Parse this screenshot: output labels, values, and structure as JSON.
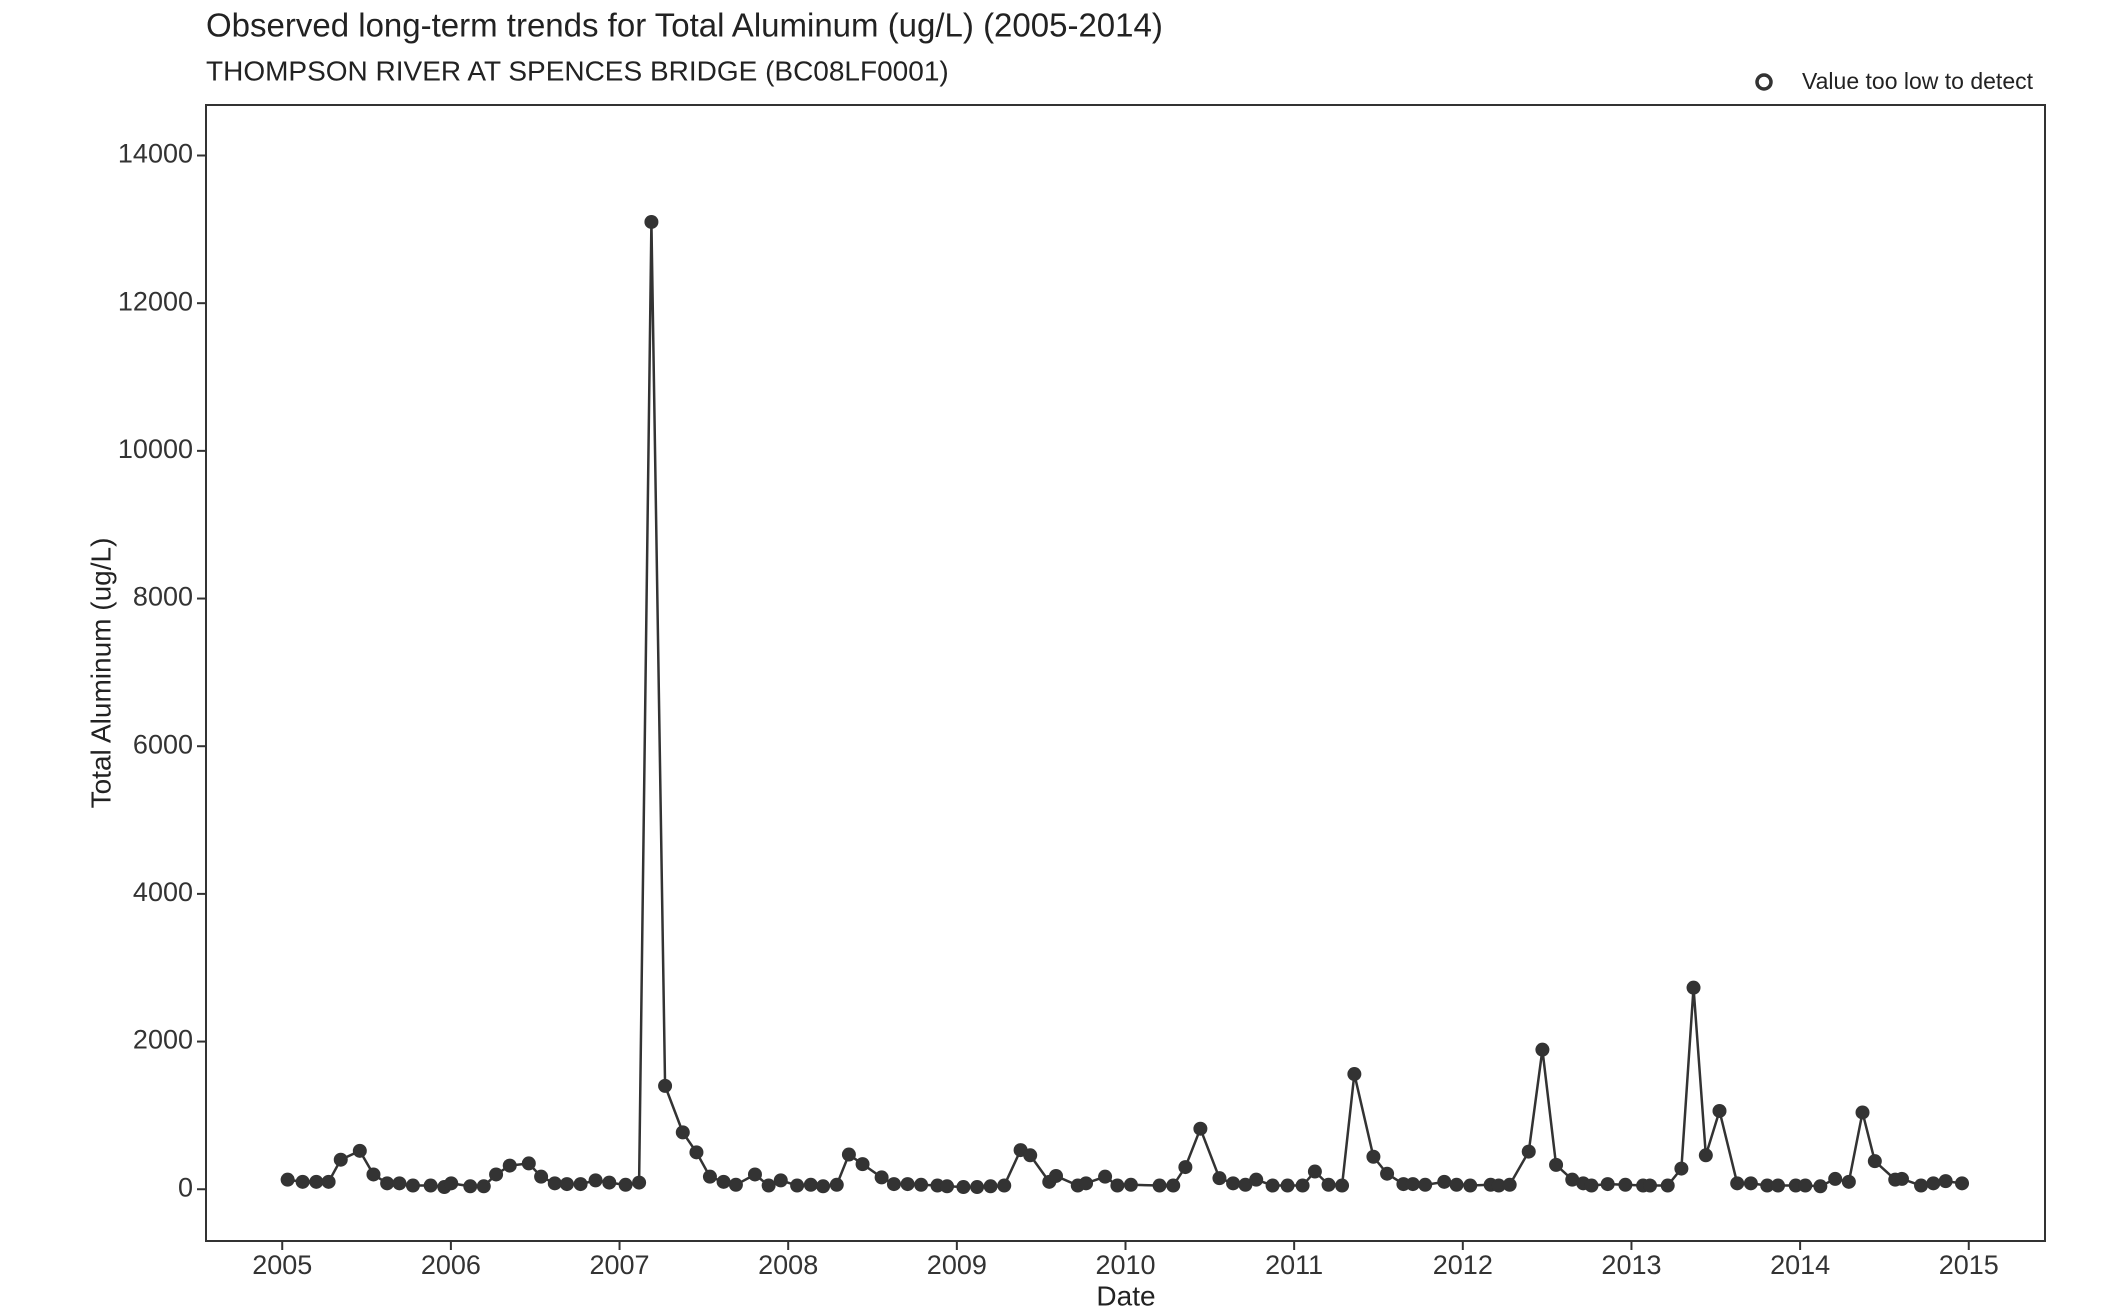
{
  "chart_data": {
    "type": "line",
    "title": "Observed long-term trends for Total Aluminum (ug/L) (2005-2014)",
    "subtitle": "THOMPSON RIVER AT SPENCES BRIDGE (BC08LF0001)",
    "x_label": "Date",
    "y_label": "Total Aluminum (ug/L)",
    "legend": [
      {
        "label": "Value too low to detect",
        "marker": "open-circle"
      }
    ],
    "legend_position": "top-right",
    "grid": false,
    "color": "#333333",
    "x": [
      2005.032,
      2005.121,
      2005.202,
      2005.275,
      2005.347,
      2005.46,
      2005.541,
      2005.622,
      2005.695,
      2005.775,
      2005.88,
      2005.961,
      2006.002,
      2006.115,
      2006.195,
      2006.268,
      2006.349,
      2006.462,
      2006.535,
      2006.616,
      2006.688,
      2006.769,
      2006.858,
      2006.939,
      2007.036,
      2007.116,
      2007.189,
      2007.27,
      2007.375,
      2007.456,
      2007.536,
      2007.617,
      2007.69,
      2007.803,
      2007.884,
      2007.956,
      2008.053,
      2008.134,
      2008.207,
      2008.288,
      2008.36,
      2008.441,
      2008.554,
      2008.627,
      2008.708,
      2008.788,
      2008.885,
      2008.942,
      2009.039,
      2009.12,
      2009.2,
      2009.281,
      2009.378,
      2009.435,
      2009.548,
      2009.588,
      2009.717,
      2009.766,
      2009.879,
      2009.952,
      2010.032,
      2010.202,
      2010.283,
      2010.355,
      2010.444,
      2010.557,
      2010.638,
      2010.711,
      2010.775,
      2010.872,
      2010.961,
      2011.05,
      2011.123,
      2011.204,
      2011.284,
      2011.357,
      2011.47,
      2011.551,
      2011.648,
      2011.704,
      2011.777,
      2011.89,
      2011.963,
      2012.044,
      2012.165,
      2012.213,
      2012.278,
      2012.391,
      2012.472,
      2012.553,
      2012.649,
      2012.714,
      2012.763,
      2012.859,
      2012.964,
      2013.069,
      2013.11,
      2013.215,
      2013.296,
      2013.368,
      2013.441,
      2013.522,
      2013.627,
      2013.708,
      2013.805,
      2013.869,
      2013.974,
      2014.031,
      2014.12,
      2014.208,
      2014.289,
      2014.37,
      2014.443,
      2014.564,
      2014.604,
      2014.717,
      2014.79,
      2014.863,
      2014.96
    ],
    "values": [
      130,
      100,
      100,
      100,
      400,
      520,
      200,
      80,
      80,
      50,
      50,
      30,
      80,
      40,
      40,
      200,
      320,
      350,
      170,
      80,
      70,
      70,
      120,
      90,
      60,
      90,
      13100,
      1400,
      770,
      500,
      170,
      100,
      60,
      200,
      50,
      120,
      50,
      60,
      40,
      60,
      470,
      340,
      160,
      70,
      70,
      60,
      50,
      40,
      30,
      30,
      40,
      50,
      530,
      460,
      100,
      180,
      50,
      80,
      170,
      50,
      60,
      50,
      50,
      300,
      820,
      150,
      80,
      60,
      130,
      50,
      50,
      50,
      240,
      60,
      50,
      1560,
      440,
      210,
      70,
      70,
      60,
      100,
      60,
      50,
      60,
      50,
      60,
      510,
      1890,
      330,
      130,
      80,
      50,
      70,
      60,
      50,
      50,
      50,
      280,
      2730,
      460,
      1060,
      80,
      80,
      50,
      50,
      50,
      50,
      40,
      140,
      100,
      1040,
      380,
      130,
      140,
      50,
      80,
      110,
      80
    ],
    "xlim": [
      2004.548,
      2015.452
    ],
    "xticks": [
      2005,
      2006,
      2007,
      2008,
      2009,
      2010,
      2011,
      2012,
      2013,
      2014,
      2015
    ],
    "ylim": [
      -701,
      14684
    ],
    "yticks": [
      0,
      2000,
      4000,
      6000,
      8000,
      10000,
      12000,
      14000
    ]
  }
}
